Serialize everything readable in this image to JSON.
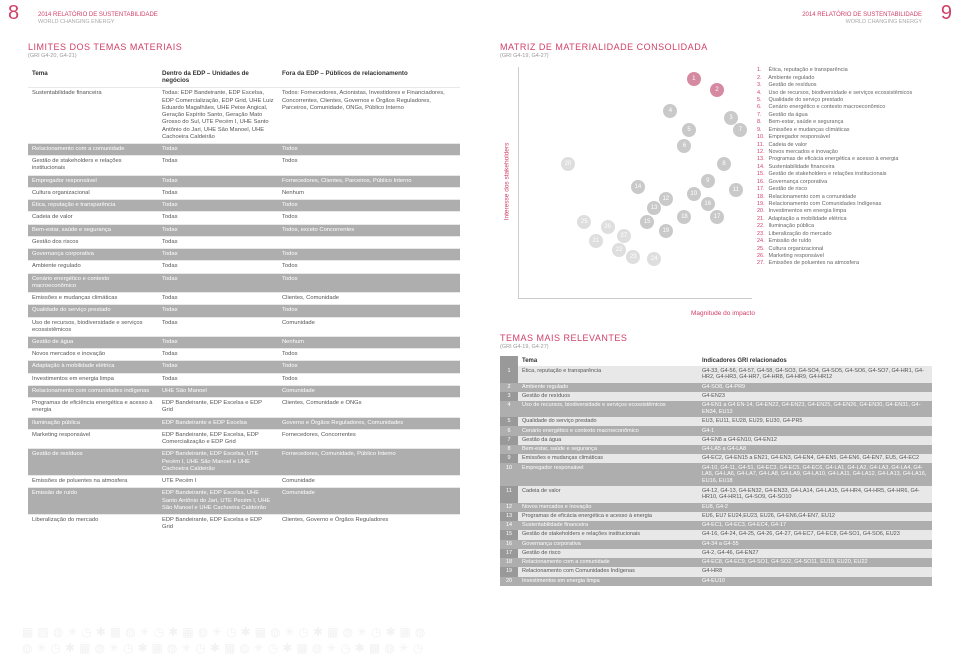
{
  "header": {
    "title": "2014 RELATÓRIO DE SUSTENTABILIDADE",
    "sub": "WORLD CHANGING ENERGY",
    "page_left": "8",
    "page_right": "9"
  },
  "left": {
    "title": "LIMITES DOS TEMAS MATERIAIS",
    "sub": "(GRI G4-20, G4-21)",
    "columns": [
      "Tema",
      "Dentro da EDP – Unidades de negócios",
      "Fora da EDP – Públicos de relacionamento"
    ],
    "rows": [
      {
        "dark": false,
        "c": [
          "Sustentabilidade financeira",
          "Todas: EDP Bandeirante, EDP Escelsa, EDP Comercialização, EDP Grid, UHE Luiz Eduardo Magalhães, UHE Peixe Angical, Geração Espírito Santo, Geração Mato Grosso do Sul, UTE Pecém I, UHE Santo Antônio do Jari, UHE São Manoel, UHE Cachoeira Caldeirão",
          "Todos: Fornecedores, Acionistas, Investidores e Financiadores, Concorrentes, Clientes, Governos e Órgãos Reguladores, Parceiros, Comunidade, ONGs, Público Interno"
        ]
      },
      {
        "dark": true,
        "c": [
          "Relacionamento com a comunidade",
          "Todas",
          "Todos"
        ]
      },
      {
        "dark": false,
        "c": [
          "Gestão de stakeholders e relações institucionais",
          "Todas",
          "Todos"
        ]
      },
      {
        "dark": true,
        "c": [
          "Empregador responsável",
          "Todas",
          "Fornecedores, Clientes, Parceiros, Público Interno"
        ]
      },
      {
        "dark": false,
        "c": [
          "Cultura organizacional",
          "Todas",
          "Nenhum"
        ]
      },
      {
        "dark": true,
        "c": [
          "Ética, reputação e transparência",
          "Todas",
          "Todos"
        ]
      },
      {
        "dark": false,
        "c": [
          "Cadeia de valor",
          "Todas",
          "Todos"
        ]
      },
      {
        "dark": true,
        "c": [
          "Bem-estar, saúde e segurança",
          "Todas",
          "Todos, exceto Concorrentes"
        ]
      },
      {
        "dark": false,
        "c": [
          "Gestão dos riscos",
          "Todas",
          ""
        ]
      },
      {
        "dark": true,
        "c": [
          "Governança corporativa",
          "Todas",
          "Todos"
        ]
      },
      {
        "dark": false,
        "c": [
          "Ambiente regulado",
          "Todas",
          "Todos"
        ]
      },
      {
        "dark": true,
        "c": [
          "Cenário energético e contexto macroeconômico",
          "Todas",
          "Todos"
        ]
      },
      {
        "dark": false,
        "c": [
          "Emissões e mudanças climáticas",
          "Todas",
          "Clientes, Comunidade"
        ]
      },
      {
        "dark": true,
        "c": [
          "Qualidade do serviço prestado",
          "Todas",
          "Todos"
        ]
      },
      {
        "dark": false,
        "c": [
          "Uso de recursos, biodiversidade e serviços ecossistêmicos",
          "Todas",
          "Comunidade"
        ]
      },
      {
        "dark": true,
        "c": [
          "Gestão de água",
          "Todas",
          "Nenhum"
        ]
      },
      {
        "dark": false,
        "c": [
          "Novos mercados e inovação",
          "Todas",
          "Todos"
        ]
      },
      {
        "dark": true,
        "c": [
          "Adaptação à mobilidade elétrica",
          "Todas",
          "Todos"
        ]
      },
      {
        "dark": false,
        "c": [
          "Investimentos em energia limpa",
          "Todas",
          "Todos"
        ]
      },
      {
        "dark": true,
        "c": [
          "Relacionamento com comunidades indígenas",
          "UHE São Manoel",
          "Comunidade"
        ]
      },
      {
        "dark": false,
        "c": [
          "Programas de eficiência energética e acesso à energia",
          "EDP Bandeirante, EDP Escelsa e EDP Grid",
          "Clientes, Comunidade e ONGs"
        ]
      },
      {
        "dark": true,
        "c": [
          "Iluminação pública",
          "EDP Bandeirante e EDP Escelsa",
          "Governo e Órgãos Reguladores, Comunidades"
        ]
      },
      {
        "dark": false,
        "c": [
          "Marketing responsável",
          "EDP Bandeirante, EDP Escelsa, EDP Comercialização e EDP Grid",
          "Fornecedores, Concorrentes"
        ]
      },
      {
        "dark": true,
        "c": [
          "Gestão de resíduos",
          "EDP Bandeirante, EDP Escelsa, UTE Pecém I, UHE São Manoel e UHE Cachoeira Caldeirão",
          "Fornecedores, Comunidade, Público Interno"
        ]
      },
      {
        "dark": false,
        "c": [
          "Emissões de poluentes na atmosfera",
          "UTE Pecém I",
          "Comunidade"
        ]
      },
      {
        "dark": true,
        "c": [
          "Emissão de ruído",
          "EDP Bandeirante, EDP Escelsa, UHE Santo Antônio do Jari, UTE Pecém I, UHE São Manoel e UHE Cachoeira Caldeirão",
          "Comunidade"
        ]
      },
      {
        "dark": false,
        "c": [
          "Liberalização do mercado",
          "EDP Bandeirante, EDP Escelsa e EDP Grid",
          "Clientes, Governo e Órgãos Reguladores"
        ]
      }
    ]
  },
  "right": {
    "matrix_title": "MATRIZ DE MATERIALIDADE CONSOLIDADA",
    "matrix_sub": "(GRI G4-19, G4-27)",
    "axis_y": "Interesse dos stakeholders",
    "axis_x": "Magnitude do impacto",
    "bubbles": [
      {
        "n": "1",
        "x": 72,
        "y": 92,
        "color": "#d58aa2"
      },
      {
        "n": "2",
        "x": 82,
        "y": 87,
        "color": "#d58aa2"
      },
      {
        "n": "3",
        "x": 88,
        "y": 75,
        "color": "#c9c9c9"
      },
      {
        "n": "4",
        "x": 62,
        "y": 78,
        "color": "#c9c9c9"
      },
      {
        "n": "5",
        "x": 70,
        "y": 70,
        "color": "#c9c9c9"
      },
      {
        "n": "6",
        "x": 68,
        "y": 63,
        "color": "#c9c9c9"
      },
      {
        "n": "7",
        "x": 92,
        "y": 70,
        "color": "#c9c9c9"
      },
      {
        "n": "8",
        "x": 85,
        "y": 55,
        "color": "#c9c9c9"
      },
      {
        "n": "9",
        "x": 78,
        "y": 48,
        "color": "#c9c9c9"
      },
      {
        "n": "10",
        "x": 72,
        "y": 42,
        "color": "#c9c9c9"
      },
      {
        "n": "11",
        "x": 90,
        "y": 44,
        "color": "#c9c9c9"
      },
      {
        "n": "12",
        "x": 60,
        "y": 40,
        "color": "#c9c9c9"
      },
      {
        "n": "13",
        "x": 55,
        "y": 36,
        "color": "#c9c9c9"
      },
      {
        "n": "14",
        "x": 48,
        "y": 45,
        "color": "#c9c9c9"
      },
      {
        "n": "15",
        "x": 52,
        "y": 30,
        "color": "#c9c9c9"
      },
      {
        "n": "16",
        "x": 78,
        "y": 38,
        "color": "#c9c9c9"
      },
      {
        "n": "17",
        "x": 82,
        "y": 32,
        "color": "#c9c9c9"
      },
      {
        "n": "18",
        "x": 68,
        "y": 32,
        "color": "#c9c9c9"
      },
      {
        "n": "19",
        "x": 60,
        "y": 26,
        "color": "#c9c9c9"
      },
      {
        "n": "20",
        "x": 18,
        "y": 55,
        "color": "#dedede"
      },
      {
        "n": "21",
        "x": 30,
        "y": 22,
        "color": "#dedede"
      },
      {
        "n": "22",
        "x": 40,
        "y": 18,
        "color": "#dedede"
      },
      {
        "n": "23",
        "x": 46,
        "y": 15,
        "color": "#dedede"
      },
      {
        "n": "24",
        "x": 55,
        "y": 14,
        "color": "#dedede"
      },
      {
        "n": "25",
        "x": 25,
        "y": 30,
        "color": "#dedede"
      },
      {
        "n": "26",
        "x": 35,
        "y": 28,
        "color": "#dedede"
      },
      {
        "n": "27",
        "x": 42,
        "y": 24,
        "color": "#dedede"
      }
    ],
    "legend": [
      "Ética, reputação e transparência",
      "Ambiente regulado",
      "Gestão de resíduos",
      "Uso de recursos, biodiversidade e serviços ecossistêmicos",
      "Qualidade do serviço prestado",
      "Cenário energético e contexto macroeconômico",
      "Gestão da água",
      "Bem-estar, saúde e segurança",
      "Emissões e mudanças climáticas",
      "Empregador responsável",
      "Cadeia de valor",
      "Novos mercados e inovação",
      "Programas de eficácia energética e acesso à energia",
      "Sustentabilidade financeira",
      "Gestão de stakeholders e relações institucionais",
      "Governança corporativa",
      "Gestão de risco",
      "Relacionamento com a comunidade",
      "Relacionamento com Comunidades Indígenas",
      "Investimentos em energia limpa",
      "Adaptação a mobilidade elétrica",
      "Iluminação pública",
      "Liberalização do mercado",
      "Emissão de ruído",
      "Cultura organizacional",
      "Marketing responsável",
      "Emissões de poluentes na atmosfera"
    ],
    "relevant_title": "TEMAS MAIS RELEVANTES",
    "relevant_sub": "(GRI G4-19, G4-27)",
    "relevant_columns": [
      "",
      "Tema",
      "Indicadores GRI relacionados"
    ],
    "relevant_rows": [
      [
        "1",
        "Ética, reputação e transparência",
        "G4-33, G4-56, G4-57, G4-58, G4-SO3, G4-SO4, G4-SO5, G4-SO6, G4-SO7, G4-HR1, G4-HR2, G4-HR3, G4-HR7, G4-HR8, G4-HR9, G4-HR12"
      ],
      [
        "2",
        "Ambiente regulado",
        "G4-SO8, G4-PR9"
      ],
      [
        "3",
        "Gestão de resíduos",
        "G4-EN23"
      ],
      [
        "4",
        "Uso de recursos, biodiversidade e serviços ecossistêmicos",
        "G4-EN1 a G4 EN-14, G4-EN22, G4-EN23, G4-EN25, G4-EN26, G4-EN30, G4-EN31, G4-EN34, EU13"
      ],
      [
        "5",
        "Qualidade do serviço prestado",
        "EU3, EU11, EU28, EU29, EU30, G4-PR5"
      ],
      [
        "6",
        "Cenário energético e contexto macroeconômico",
        "G4-1"
      ],
      [
        "7",
        "Gestão da água",
        "G4-EN8 a G4-EN10, G4-EN12"
      ],
      [
        "8",
        "Bem-estar, saúde e segurança",
        "G4-LA5 a G4-LA8"
      ],
      [
        "9",
        "Emissões e mudanças climáticas",
        "G4-EC2, G4-EN15 a EN21, G4-EN3, G4-EN4, G4-EN5, G4-EN6, G4-EN7, EU5, G4-EC2"
      ],
      [
        "10",
        "Empregador responsável",
        "G4-10, G4-11, G4-51, G4-EC3, G4-EC5, G4-EC6, G4-LA1, G4-LA2, G4-LA3, G4-LA4, G4-LA5, G4-LA6, G4-LA7, G4-LA8, G4-LA9, G4-LA10, G4-LA11, G4-LA12, G4-LA13, G4-LA16, EU16, EU18"
      ],
      [
        "11",
        "Cadeia de valor",
        "G4-12, G4-13, G4-EN32, G4-EN33, G4-LA14, G4-LA15, G4-HR4, G4-HR5, G4-HR6, G4-HR10, G4-HR11, G4-SO9, G4-SO10"
      ],
      [
        "12",
        "Novos mercados e inovação",
        "EU8, G4-2"
      ],
      [
        "13",
        "Programas de eficácia energética e acesso à energia",
        "EU6, EU7 EU24,EU23, EU26, G4-EN6,G4-EN7, EU12"
      ],
      [
        "14",
        "Sustentabilidade financeira",
        "G4-EC1, G4-EC3, G4-EC4, G4-17"
      ],
      [
        "15",
        "Gestão de stakeholders e relações institucionais",
        "G4-16, G4-24, G4-25, G4-26, G4-27, G4-EC7, G4-EC8, G4-SO1, G4-SO6, EU23"
      ],
      [
        "16",
        "Governança corporativa",
        "G4-34 a G4-55"
      ],
      [
        "17",
        "Gestão de risco",
        "G4-2, G4-46, G4-EN27"
      ],
      [
        "18",
        "Relacionamento com a comunidade",
        "G4-EC8, G4-EC9, G4-SO1, G4-SO2, G4-SO11, EU19, EU20, EU22"
      ],
      [
        "19",
        "Relacionamento com Comunidades Indígenas",
        "G4-HR8"
      ],
      [
        "20",
        "Investimentos em energia limpa",
        "G4-EU10"
      ]
    ]
  }
}
